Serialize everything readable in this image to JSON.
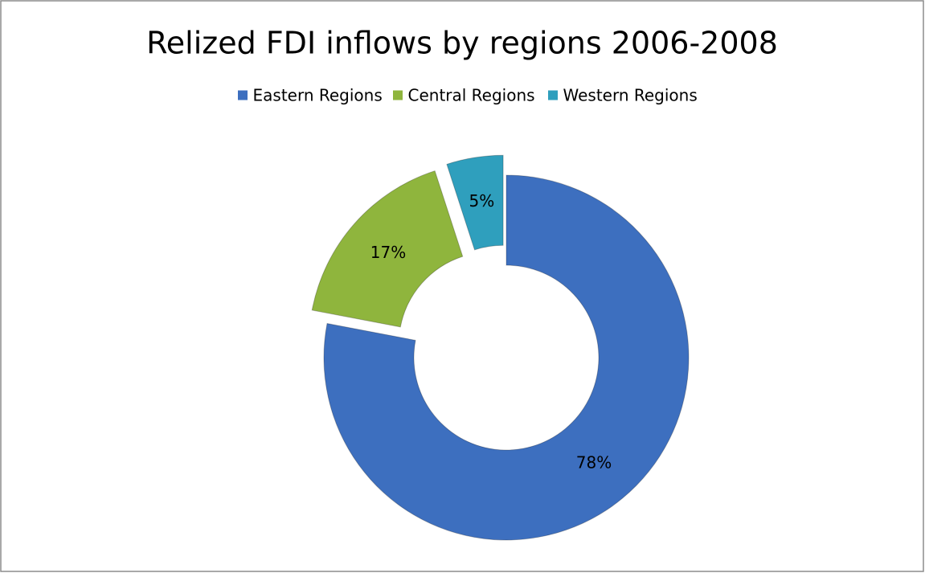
{
  "chart_data": {
    "type": "donut",
    "title": "Relized FDI inflows by regions 2006-2008",
    "categories": [
      "Eastern Regions",
      "Central Regions",
      "Western Regions"
    ],
    "values": [
      78,
      17,
      5
    ],
    "value_labels": [
      "78%",
      "17%",
      "5%"
    ],
    "colors": [
      "#3d6fbf",
      "#8fb53d",
      "#2f9fbd"
    ],
    "legend": "top"
  }
}
